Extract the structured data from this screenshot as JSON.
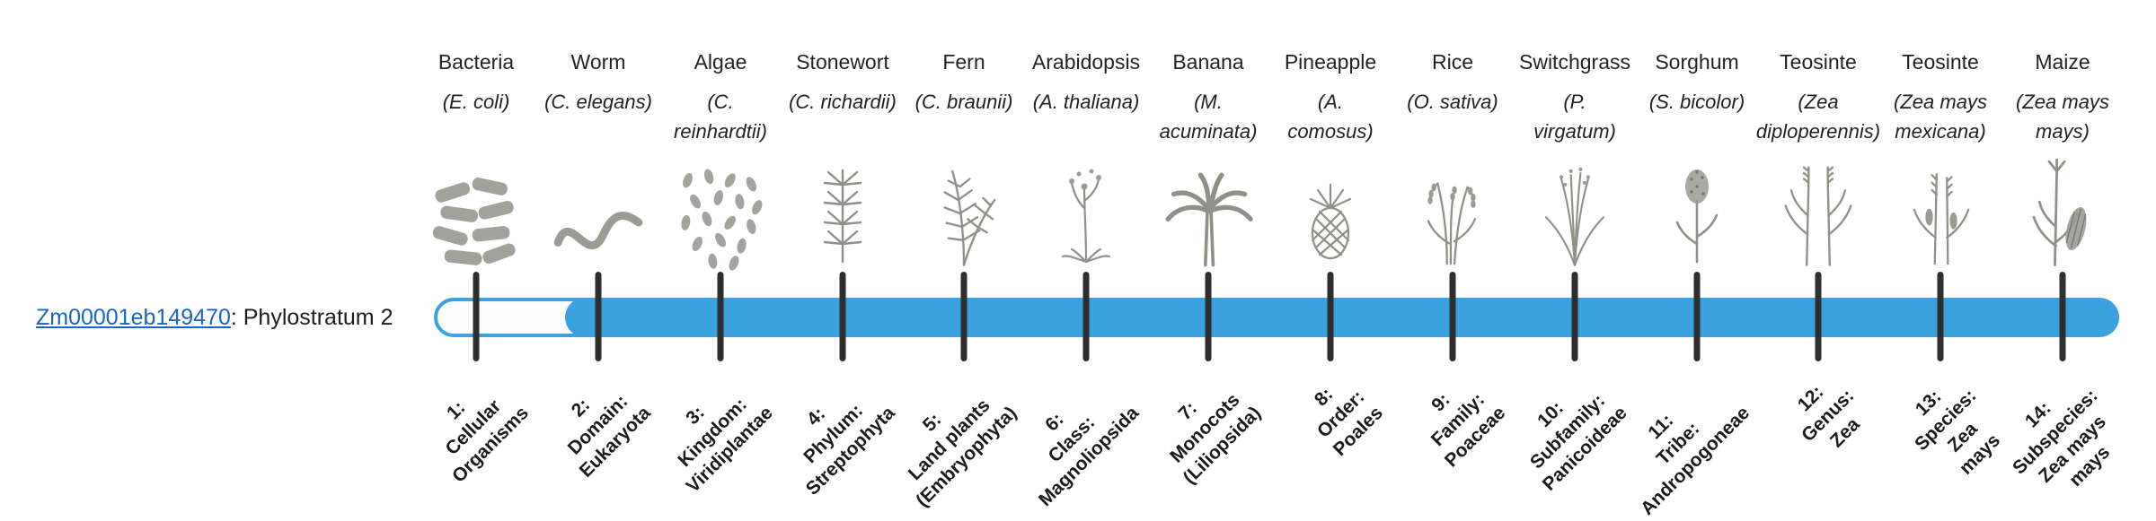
{
  "colors": {
    "bar_blue": "#3AA2DF",
    "link_blue": "#1766C2",
    "tick_dark": "#2E2E2E"
  },
  "gene": {
    "id": "Zm00001eb149470",
    "suffix": ": Phylostratum 2",
    "phylostratum": 2
  },
  "timeline": {
    "filled_from_stratum": 2,
    "strata_count": 14
  },
  "phylostrata": [
    {
      "index": 1,
      "organism": "Bacteria",
      "scientific": "(E. coli)",
      "icon": "bacteria",
      "stratum_label": "1:\nCellular\nOrganisms"
    },
    {
      "index": 2,
      "organism": "Worm",
      "scientific": "(C. elegans)",
      "icon": "worm",
      "stratum_label": "2:\nDomain:\nEukaryota"
    },
    {
      "index": 3,
      "organism": "Algae",
      "scientific": "(C.\nreinhardtii)",
      "icon": "algae",
      "stratum_label": "3:\nKingdom:\nViridiplantae"
    },
    {
      "index": 4,
      "organism": "Stonewort",
      "scientific": "(C. richardii)",
      "icon": "stonewort",
      "stratum_label": "4:\nPhylum:\nStreptophyta"
    },
    {
      "index": 5,
      "organism": "Fern",
      "scientific": "(C. braunii)",
      "icon": "fern",
      "stratum_label": "5:\nLand plants\n(Embryophyta)"
    },
    {
      "index": 6,
      "organism": "Arabidopsis",
      "scientific": "(A. thaliana)",
      "icon": "arabidopsis",
      "stratum_label": "6:\nClass:\nMagnoliopsida"
    },
    {
      "index": 7,
      "organism": "Banana",
      "scientific": "(M.\nacuminata)",
      "icon": "banana",
      "stratum_label": "7:\nMonocots\n(Liliopsida)"
    },
    {
      "index": 8,
      "organism": "Pineapple",
      "scientific": "(A.\ncomosus)",
      "icon": "pineapple",
      "stratum_label": "8:\nOrder:\nPoales"
    },
    {
      "index": 9,
      "organism": "Rice",
      "scientific": "(O. sativa)",
      "icon": "rice",
      "stratum_label": "9:\nFamily:\nPoaceae"
    },
    {
      "index": 10,
      "organism": "Switchgrass",
      "scientific": "(P.\nvirgatum)",
      "icon": "switchgrass",
      "stratum_label": "10:\nSubfamily:\nPanicoideae"
    },
    {
      "index": 11,
      "organism": "Sorghum",
      "scientific": "(S. bicolor)",
      "icon": "sorghum",
      "stratum_label": "11:\nTribe:\nAndropogoneae"
    },
    {
      "index": 12,
      "organism": "Teosinte",
      "scientific": "(Zea\ndiploperennis)",
      "icon": "teosinte-diploperennis",
      "stratum_label": "12:\nGenus:\nZea"
    },
    {
      "index": 13,
      "organism": "Teosinte",
      "scientific": "(Zea mays\nmexicana)",
      "icon": "teosinte-mexicana",
      "stratum_label": "13:\nSpecies:\nZea\nmays"
    },
    {
      "index": 14,
      "organism": "Maize",
      "scientific": "(Zea mays\nmays)",
      "icon": "maize",
      "stratum_label": "14:\nSubspecies:\nZea mays\nmays"
    }
  ]
}
